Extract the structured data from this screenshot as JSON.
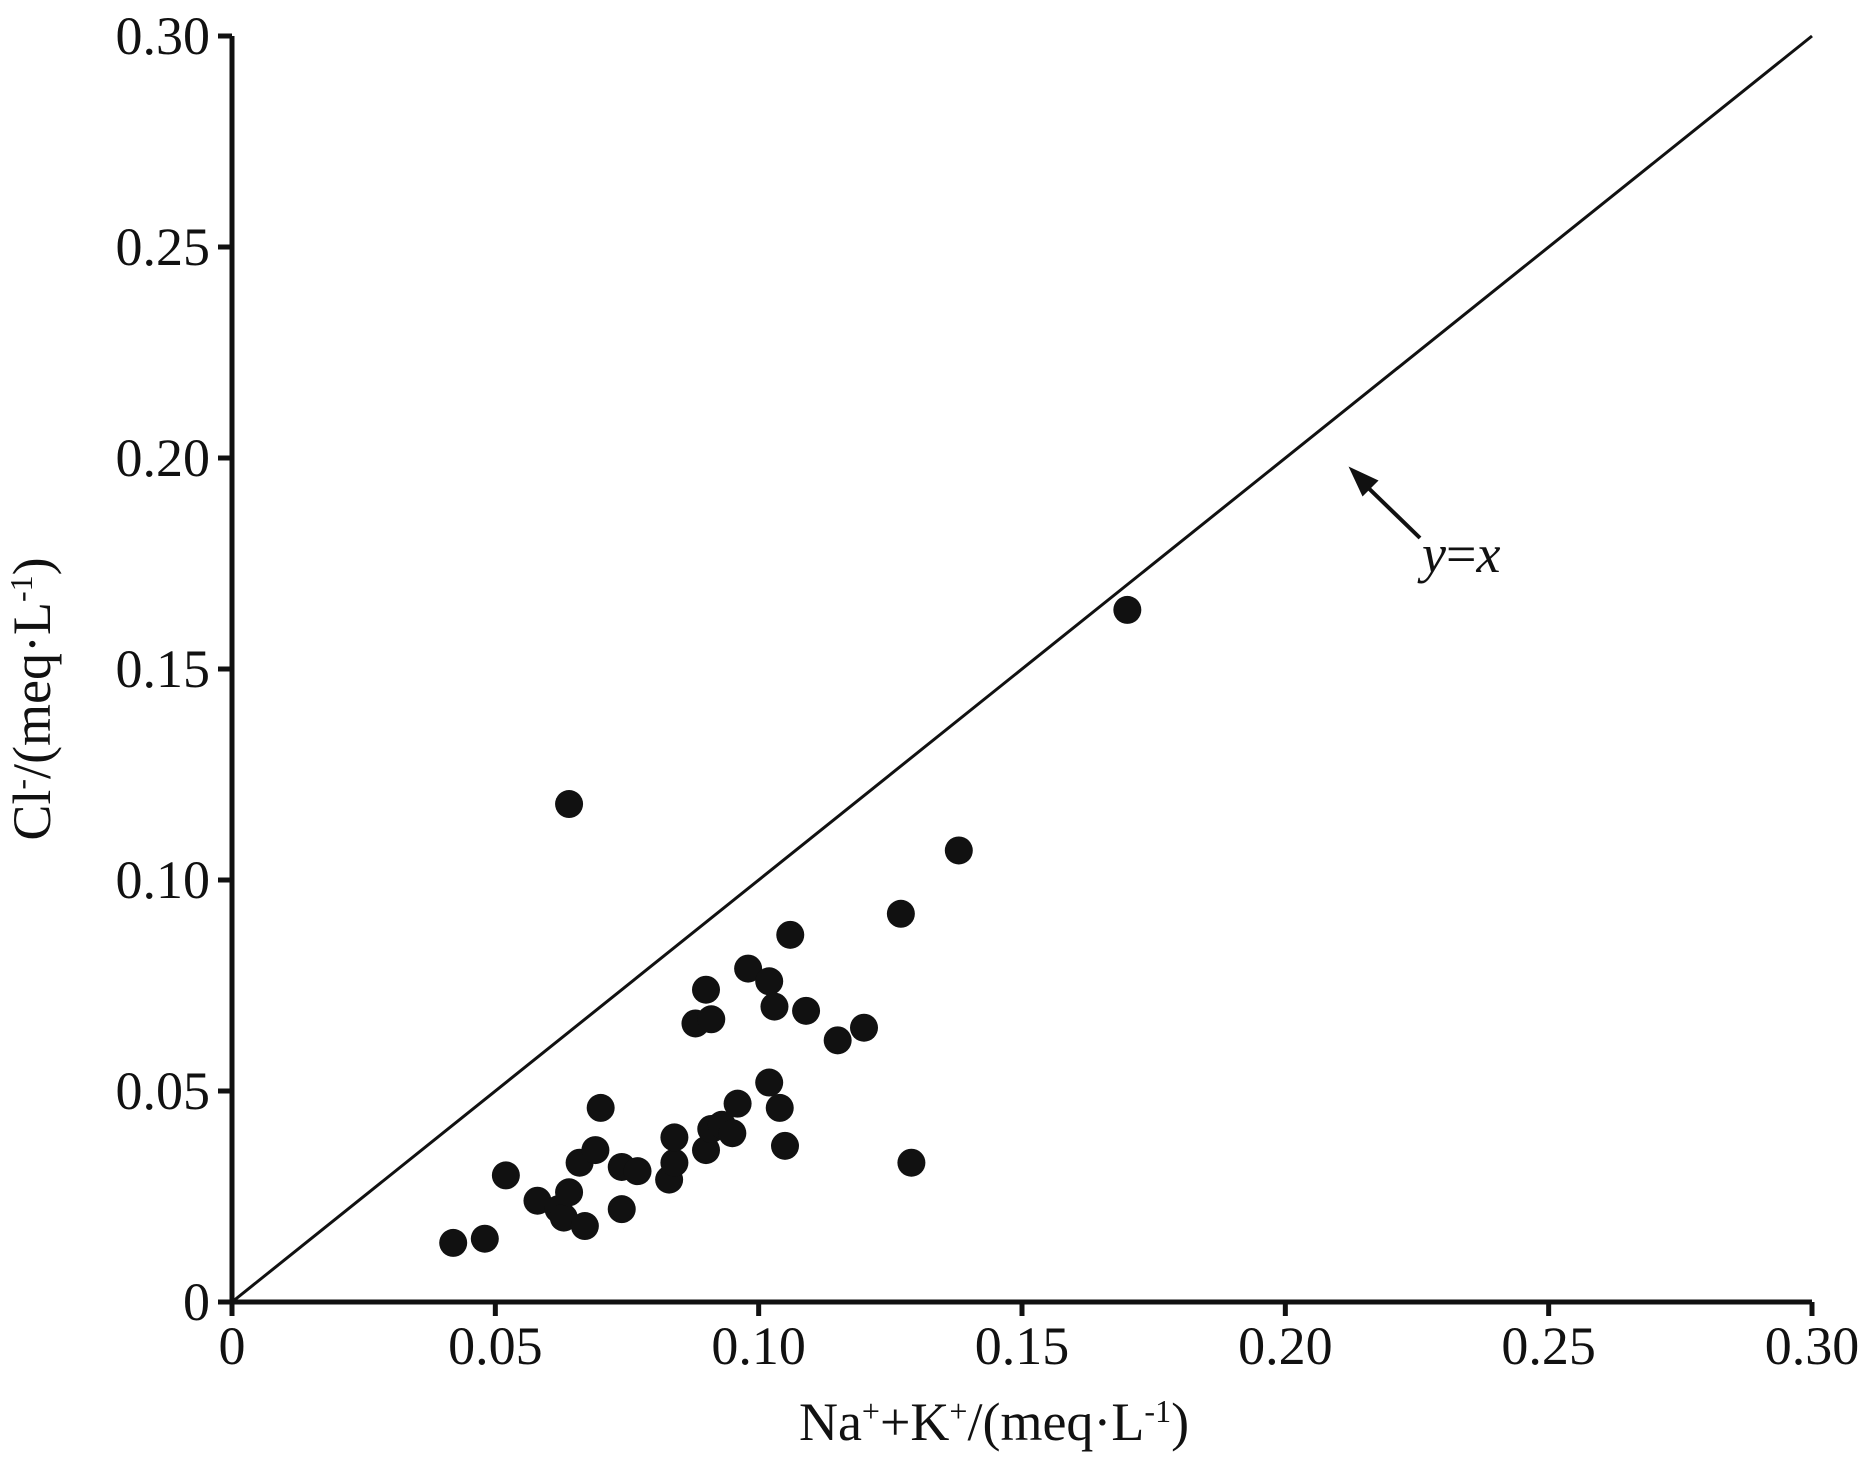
{
  "chart_data": {
    "type": "scatter",
    "title": "",
    "xlabel_parts": [
      "Na",
      "+",
      "+K",
      "+",
      "/(meq·L",
      "-1",
      ")"
    ],
    "ylabel_parts": [
      "Cl",
      "-",
      "/(meq·L",
      "-1",
      ")"
    ],
    "xlim": [
      0,
      0.3
    ],
    "ylim": [
      0,
      0.3
    ],
    "xticks": [
      0,
      0.05,
      0.1,
      0.15,
      0.2,
      0.25,
      0.3
    ],
    "xtick_labels": [
      "0",
      "0.05",
      "0.10",
      "0.15",
      "0.20",
      "0.25",
      "0.30"
    ],
    "yticks": [
      0,
      0.05,
      0.1,
      0.15,
      0.2,
      0.25,
      0.3
    ],
    "ytick_labels": [
      "0",
      "0.05",
      "0.10",
      "0.15",
      "0.20",
      "0.25",
      "0.30"
    ],
    "grid": false,
    "reference_line": {
      "slope": 1,
      "intercept": 0,
      "label": "y=x"
    },
    "annotation": {
      "text_parts": [
        "y",
        "=",
        "x"
      ],
      "points_to": [
        0.212,
        0.198
      ]
    },
    "marker_color": "#111111",
    "line_color": "#111111",
    "points": [
      {
        "x": 0.042,
        "y": 0.014
      },
      {
        "x": 0.048,
        "y": 0.015
      },
      {
        "x": 0.052,
        "y": 0.03
      },
      {
        "x": 0.058,
        "y": 0.024
      },
      {
        "x": 0.062,
        "y": 0.022
      },
      {
        "x": 0.063,
        "y": 0.02
      },
      {
        "x": 0.064,
        "y": 0.026
      },
      {
        "x": 0.064,
        "y": 0.118
      },
      {
        "x": 0.066,
        "y": 0.033
      },
      {
        "x": 0.067,
        "y": 0.018
      },
      {
        "x": 0.069,
        "y": 0.036
      },
      {
        "x": 0.07,
        "y": 0.046
      },
      {
        "x": 0.074,
        "y": 0.022
      },
      {
        "x": 0.074,
        "y": 0.032
      },
      {
        "x": 0.077,
        "y": 0.031
      },
      {
        "x": 0.083,
        "y": 0.029
      },
      {
        "x": 0.084,
        "y": 0.033
      },
      {
        "x": 0.084,
        "y": 0.039
      },
      {
        "x": 0.088,
        "y": 0.066
      },
      {
        "x": 0.09,
        "y": 0.074
      },
      {
        "x": 0.091,
        "y": 0.067
      },
      {
        "x": 0.09,
        "y": 0.036
      },
      {
        "x": 0.091,
        "y": 0.041
      },
      {
        "x": 0.093,
        "y": 0.042
      },
      {
        "x": 0.095,
        "y": 0.04
      },
      {
        "x": 0.096,
        "y": 0.047
      },
      {
        "x": 0.098,
        "y": 0.079
      },
      {
        "x": 0.102,
        "y": 0.076
      },
      {
        "x": 0.102,
        "y": 0.052
      },
      {
        "x": 0.103,
        "y": 0.07
      },
      {
        "x": 0.104,
        "y": 0.046
      },
      {
        "x": 0.105,
        "y": 0.037
      },
      {
        "x": 0.106,
        "y": 0.087
      },
      {
        "x": 0.109,
        "y": 0.069
      },
      {
        "x": 0.115,
        "y": 0.062
      },
      {
        "x": 0.12,
        "y": 0.065
      },
      {
        "x": 0.127,
        "y": 0.092
      },
      {
        "x": 0.129,
        "y": 0.033
      },
      {
        "x": 0.138,
        "y": 0.107
      },
      {
        "x": 0.17,
        "y": 0.164
      }
    ]
  }
}
